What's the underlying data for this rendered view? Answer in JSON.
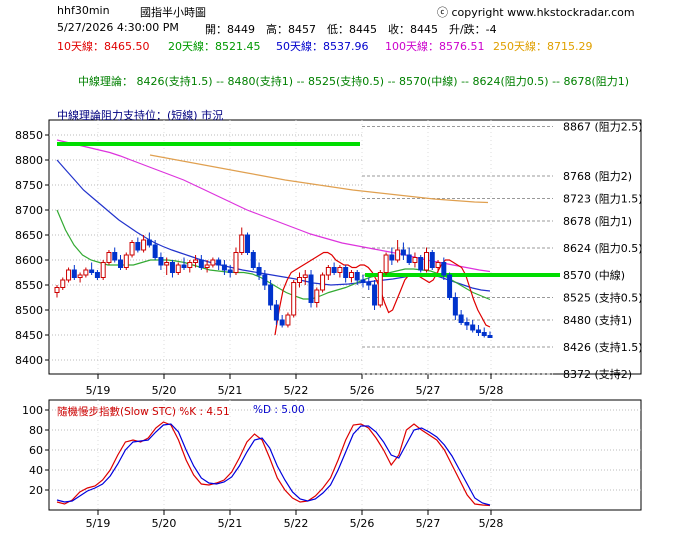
{
  "header": {
    "symbol": "hhf30min",
    "title": "國指半小時圖",
    "copyright": "ⓒ copyright www.hkstockradar.com",
    "datetime": "5/27/2026 4:30:00 PM",
    "ohlc": "開：8449　高：8457　低：8445　收：8445　升/跌：-4",
    "ma": [
      {
        "label": "10天線：8465.50",
        "color": "#e00000"
      },
      {
        "label": "20天線：8521.45",
        "color": "#009900"
      },
      {
        "label": "50天線：8537.96",
        "color": "#0000cc"
      },
      {
        "label": "100天線：8576.51",
        "color": "#cc00cc"
      },
      {
        "label": "250天線：8715.29",
        "color": "#e0a000"
      }
    ],
    "theory": "中線理論：  8426(支持1.5) -- 8480(支持1) -- 8525(支持0.5) -- 8570(中線) -- 8624(阻力0.5) -- 8678(阻力1)"
  },
  "colors": {
    "up": "#cc0000",
    "down": "#0033cc",
    "ma10": "#e00000",
    "ma20": "#33aa33",
    "ma50": "#2233cc",
    "ma100": "#dd33dd",
    "ma250": "#e0a050",
    "k": "#dd0000",
    "d": "#0000dd",
    "level": "#00dd00"
  },
  "chart_data": [
    {
      "type": "candlestick",
      "title": "中線理論阻力支持位：(短線) 市況",
      "ylim": [
        8372,
        8880
      ],
      "yticks": [
        8400,
        8450,
        8500,
        8550,
        8600,
        8650,
        8700,
        8750,
        8800,
        8850
      ],
      "xticks": [
        "5/19",
        "5/20",
        "5/21",
        "5/22",
        "5/26",
        "5/27",
        "5/28"
      ],
      "candles": [
        [
          8535,
          8550,
          8525,
          8545
        ],
        [
          8545,
          8565,
          8540,
          8560
        ],
        [
          8560,
          8585,
          8555,
          8580
        ],
        [
          8580,
          8590,
          8560,
          8565
        ],
        [
          8565,
          8575,
          8555,
          8570
        ],
        [
          8570,
          8585,
          8565,
          8580
        ],
        [
          8580,
          8595,
          8570,
          8575
        ],
        [
          8575,
          8580,
          8560,
          8565
        ],
        [
          8565,
          8600,
          8560,
          8595
        ],
        [
          8595,
          8620,
          8590,
          8615
        ],
        [
          8615,
          8625,
          8595,
          8600
        ],
        [
          8600,
          8610,
          8580,
          8585
        ],
        [
          8585,
          8615,
          8580,
          8610
        ],
        [
          8610,
          8640,
          8605,
          8635
        ],
        [
          8635,
          8645,
          8615,
          8620
        ],
        [
          8620,
          8650,
          8615,
          8640
        ],
        [
          8640,
          8655,
          8625,
          8630
        ],
        [
          8630,
          8640,
          8600,
          8605
        ],
        [
          8605,
          8615,
          8580,
          8590
        ],
        [
          8590,
          8605,
          8570,
          8595
        ],
        [
          8595,
          8600,
          8565,
          8575
        ],
        [
          8575,
          8595,
          8570,
          8590
        ],
        [
          8590,
          8605,
          8580,
          8585
        ],
        [
          8585,
          8600,
          8575,
          8595
        ],
        [
          8595,
          8610,
          8585,
          8600
        ],
        [
          8600,
          8610,
          8580,
          8585
        ],
        [
          8585,
          8600,
          8575,
          8590
        ],
        [
          8590,
          8605,
          8585,
          8600
        ],
        [
          8600,
          8605,
          8580,
          8590
        ],
        [
          8590,
          8600,
          8570,
          8580
        ],
        [
          8580,
          8590,
          8565,
          8575
        ],
        [
          8575,
          8625,
          8570,
          8615
        ],
        [
          8615,
          8665,
          8610,
          8650
        ],
        [
          8650,
          8655,
          8610,
          8615
        ],
        [
          8615,
          8620,
          8580,
          8585
        ],
        [
          8585,
          8595,
          8560,
          8570
        ],
        [
          8570,
          8580,
          8540,
          8550
        ],
        [
          8550,
          8560,
          8500,
          8510
        ],
        [
          8510,
          8520,
          8470,
          8480
        ],
        [
          8480,
          8490,
          8465,
          8470
        ],
        [
          8470,
          8495,
          8465,
          8490
        ],
        [
          8490,
          8560,
          8485,
          8555
        ],
        [
          8555,
          8575,
          8545,
          8565
        ],
        [
          8565,
          8580,
          8550,
          8570
        ],
        [
          8570,
          8580,
          8505,
          8515
        ],
        [
          8515,
          8545,
          8505,
          8540
        ],
        [
          8540,
          8575,
          8535,
          8570
        ],
        [
          8570,
          8590,
          8560,
          8585
        ],
        [
          8585,
          8595,
          8570,
          8575
        ],
        [
          8575,
          8590,
          8565,
          8585
        ],
        [
          8585,
          8590,
          8555,
          8565
        ],
        [
          8565,
          8580,
          8555,
          8575
        ],
        [
          8575,
          8580,
          8550,
          8560
        ],
        [
          8560,
          8570,
          8545,
          8555
        ],
        [
          8555,
          8565,
          8540,
          8550
        ],
        [
          8550,
          8560,
          8500,
          8510
        ],
        [
          8510,
          8580,
          8505,
          8575
        ],
        [
          8575,
          8615,
          8570,
          8610
        ],
        [
          8610,
          8625,
          8590,
          8600
        ],
        [
          8600,
          8640,
          8595,
          8620
        ],
        [
          8620,
          8635,
          8600,
          8610
        ],
        [
          8610,
          8625,
          8590,
          8595
        ],
        [
          8595,
          8615,
          8585,
          8605
        ],
        [
          8605,
          8610,
          8575,
          8580
        ],
        [
          8580,
          8625,
          8575,
          8615
        ],
        [
          8615,
          8620,
          8580,
          8585
        ],
        [
          8585,
          8600,
          8575,
          8595
        ],
        [
          8595,
          8605,
          8560,
          8570
        ],
        [
          8570,
          8575,
          8520,
          8525
        ],
        [
          8525,
          8535,
          8480,
          8490
        ],
        [
          8490,
          8500,
          8470,
          8475
        ],
        [
          8475,
          8485,
          8460,
          8470
        ],
        [
          8470,
          8480,
          8455,
          8460
        ],
        [
          8460,
          8470,
          8448,
          8455
        ],
        [
          8455,
          8465,
          8445,
          8449
        ],
        [
          8449,
          8457,
          8445,
          8445
        ]
      ],
      "ma": {
        "ma10": [
          8450,
          8500,
          8540,
          8560,
          8575,
          8580,
          8585,
          8590,
          8595,
          8600,
          8605,
          8610,
          8615,
          8615,
          8610,
          8600,
          8595,
          8590,
          8590,
          8585,
          8585,
          8590,
          8590,
          8585,
          8575,
          8560,
          8540,
          8515,
          8495,
          8500,
          8520,
          8540,
          8560,
          8570,
          8570,
          8570,
          8565,
          8560,
          8555,
          8560,
          8575,
          8590,
          8600,
          8600,
          8595,
          8590,
          8585,
          8570,
          8545,
          8520,
          8500,
          8485,
          8470,
          8466
        ],
        "ma20": [
          8700,
          8660,
          8630,
          8610,
          8600,
          8595,
          8590,
          8590,
          8590,
          8590,
          8595,
          8600,
          8600,
          8600,
          8598,
          8595,
          8590,
          8585,
          8580,
          8578,
          8576,
          8575,
          8575,
          8572,
          8565,
          8555,
          8545,
          8535,
          8528,
          8522,
          8522,
          8528,
          8535,
          8540,
          8545,
          8552,
          8560,
          8566,
          8570,
          8574,
          8578,
          8582,
          8582,
          8580,
          8578,
          8572,
          8565,
          8555,
          8545,
          8535,
          8528,
          8521
        ],
        "ma50": [
          8800,
          8780,
          8760,
          8740,
          8725,
          8710,
          8695,
          8680,
          8668,
          8656,
          8645,
          8635,
          8627,
          8620,
          8614,
          8608,
          8602,
          8597,
          8592,
          8588,
          8584,
          8580,
          8577,
          8574,
          8571,
          8568,
          8565,
          8562,
          8558,
          8554,
          8552,
          8550,
          8551,
          8552,
          8554,
          8556,
          8558,
          8560,
          8562,
          8565,
          8568,
          8570,
          8570,
          8568,
          8562,
          8556,
          8550,
          8544,
          8540,
          8538
        ],
        "ma100": [
          8840,
          8835,
          8830,
          8825,
          8820,
          8815,
          8808,
          8800,
          8792,
          8784,
          8776,
          8768,
          8760,
          8750,
          8740,
          8730,
          8720,
          8710,
          8700,
          8692,
          8684,
          8676,
          8668,
          8660,
          8652,
          8646,
          8640,
          8634,
          8630,
          8626,
          8622,
          8618,
          8614,
          8610,
          8605,
          8600,
          8596,
          8592,
          8588,
          8584,
          8580,
          8577
        ],
        "ma250": [
          8810,
          8805,
          8800,
          8795,
          8790,
          8785,
          8780,
          8775,
          8770,
          8765,
          8760,
          8756,
          8752,
          8748,
          8744,
          8740,
          8737,
          8734,
          8731,
          8728,
          8725,
          8722,
          8720,
          8718,
          8716,
          8715
        ]
      },
      "levels": [
        {
          "value": 8867,
          "label": "8867 (阻力2.5)"
        },
        {
          "value": 8768,
          "label": "8768 (阻力2)"
        },
        {
          "value": 8723,
          "label": "8723 (阻力1.5)"
        },
        {
          "value": 8678,
          "label": "8678 (阻力1)"
        },
        {
          "value": 8624,
          "label": "8624 (阻力0.5)"
        },
        {
          "value": 8570,
          "label": "8570 (中線)"
        },
        {
          "value": 8525,
          "label": "8525 (支持0.5)"
        },
        {
          "value": 8480,
          "label": "8480 (支持1)"
        },
        {
          "value": 8426,
          "label": "8426 (支持1.5)"
        },
        {
          "value": 8372,
          "label": "8372 (支持2)"
        }
      ],
      "greenlines": [
        {
          "value": 8832
        },
        {
          "value": 8570
        }
      ]
    },
    {
      "type": "line",
      "title": "隨機慢步指數(Slow STC) %K : 4.51",
      "subtitle": "%D : 5.00",
      "ylim": [
        0,
        110
      ],
      "yticks": [
        20,
        40,
        60,
        80,
        100
      ],
      "xticks": [
        "5/19",
        "5/20",
        "5/21",
        "5/22",
        "5/26",
        "5/27",
        "5/28"
      ],
      "series": [
        {
          "key": "k",
          "values": [
            8,
            6,
            10,
            18,
            22,
            24,
            30,
            40,
            55,
            68,
            70,
            68,
            72,
            82,
            88,
            85,
            70,
            50,
            35,
            26,
            25,
            27,
            30,
            38,
            52,
            68,
            76,
            70,
            52,
            32,
            20,
            12,
            8,
            9,
            14,
            22,
            32,
            50,
            70,
            85,
            86,
            82,
            72,
            60,
            45,
            55,
            80,
            86,
            80,
            75,
            70,
            60,
            45,
            30,
            15,
            6,
            5,
            4.51
          ]
        },
        {
          "key": "d",
          "values": [
            10,
            8,
            9,
            14,
            19,
            22,
            26,
            34,
            46,
            60,
            68,
            69,
            70,
            78,
            85,
            86,
            78,
            60,
            44,
            32,
            27,
            26,
            28,
            33,
            44,
            58,
            70,
            72,
            62,
            44,
            30,
            18,
            11,
            9,
            11,
            17,
            25,
            40,
            58,
            76,
            84,
            84,
            78,
            68,
            55,
            52,
            66,
            80,
            82,
            78,
            73,
            65,
            54,
            40,
            26,
            12,
            7,
            5.0
          ]
        }
      ]
    }
  ]
}
